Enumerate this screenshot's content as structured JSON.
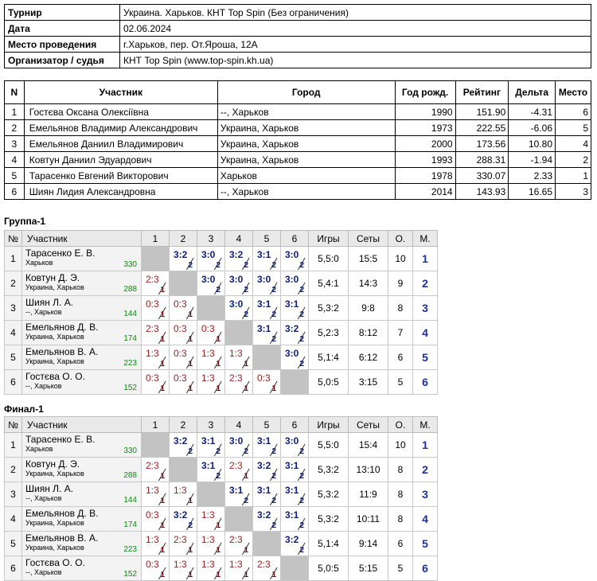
{
  "info": [
    {
      "k": "Турнир",
      "v": "Украина. Харьков. КНТ Top Spin (Без ограничения)"
    },
    {
      "k": "Дата",
      "v": "02.06.2024"
    },
    {
      "k": "Место проведения",
      "v": "г.Харьков, пер. От.Яроша, 12А"
    },
    {
      "k": "Организатор / судья",
      "v": "КНТ Top Spin (www.top-spin.kh.ua)"
    }
  ],
  "plist": {
    "headers": [
      "N",
      "Участник",
      "Город",
      "Год рожд.",
      "Рейтинг",
      "Дельта",
      "Место"
    ],
    "rows": [
      [
        "1",
        "Гостєва Оксана Олексіївна",
        "--, Харьков",
        "1990",
        "151.90",
        "-4.31",
        "6"
      ],
      [
        "2",
        "Емельянов Владимир Александрович",
        "Украина, Харьков",
        "1973",
        "222.55",
        "-6.06",
        "5"
      ],
      [
        "3",
        "Емельянов Даниил Владимирович",
        "Украина, Харьков",
        "2000",
        "173.56",
        "10.80",
        "4"
      ],
      [
        "4",
        "Ковтун Даниил Эдуардович",
        "Украина, Харьков",
        "1993",
        "288.31",
        "-1.94",
        "2"
      ],
      [
        "5",
        "Тарасенко Евгений Викторович",
        "Харьков",
        "1978",
        "330.07",
        "2.33",
        "1"
      ],
      [
        "6",
        "Шиян Лидия Александровна",
        "--, Харьков",
        "2014",
        "143.93",
        "16.65",
        "3"
      ]
    ]
  },
  "grid_headers": [
    "№",
    "Участник",
    "1",
    "2",
    "3",
    "4",
    "5",
    "6",
    "Игры",
    "Сеты",
    "О.",
    "М."
  ],
  "groups": [
    {
      "title": "Группа-1",
      "rows": [
        {
          "n": "1",
          "name": "Тарасенко Е. В.",
          "city": "Харьков",
          "rating": "330",
          "cells": [
            null,
            [
              "3:2",
              "2"
            ],
            [
              "3:0",
              "2"
            ],
            [
              "3:2",
              "2"
            ],
            [
              "3:1",
              "2"
            ],
            [
              "3:0",
              "2"
            ]
          ],
          "games": "5,5:0",
          "sets": "15:5",
          "pts": "10",
          "place": "1"
        },
        {
          "n": "2",
          "name": "Ковтун Д. Э.",
          "city": "Украина, Харьков",
          "rating": "288",
          "cells": [
            [
              "2:3",
              "1"
            ],
            null,
            [
              "3:0",
              "2"
            ],
            [
              "3:0",
              "2"
            ],
            [
              "3:0",
              "2"
            ],
            [
              "3:0",
              "2"
            ]
          ],
          "games": "5,4:1",
          "sets": "14:3",
          "pts": "9",
          "place": "2"
        },
        {
          "n": "3",
          "name": "Шиян Л. А.",
          "city": "--, Харьков",
          "rating": "144",
          "cells": [
            [
              "0:3",
              "1"
            ],
            [
              "0:3",
              "1"
            ],
            null,
            [
              "3:0",
              "2"
            ],
            [
              "3:1",
              "2"
            ],
            [
              "3:1",
              "2"
            ]
          ],
          "games": "5,3:2",
          "sets": "9:8",
          "pts": "8",
          "place": "3"
        },
        {
          "n": "4",
          "name": "Емельянов Д. В.",
          "city": "Украина, Харьков",
          "rating": "174",
          "cells": [
            [
              "2:3",
              "1"
            ],
            [
              "0:3",
              "1"
            ],
            [
              "0:3",
              "1"
            ],
            null,
            [
              "3:1",
              "2"
            ],
            [
              "3:2",
              "2"
            ]
          ],
          "games": "5,2:3",
          "sets": "8:12",
          "pts": "7",
          "place": "4"
        },
        {
          "n": "5",
          "name": "Емельянов В. А.",
          "city": "Украина, Харьков",
          "rating": "223",
          "cells": [
            [
              "1:3",
              "1"
            ],
            [
              "0:3",
              "1"
            ],
            [
              "1:3",
              "1"
            ],
            [
              "1:3",
              "1"
            ],
            null,
            [
              "3:0",
              "2"
            ]
          ],
          "games": "5,1:4",
          "sets": "6:12",
          "pts": "6",
          "place": "5"
        },
        {
          "n": "6",
          "name": "Гостєва О. О.",
          "city": "--, Харьков",
          "rating": "152",
          "cells": [
            [
              "0:3",
              "1"
            ],
            [
              "0:3",
              "1"
            ],
            [
              "1:3",
              "1"
            ],
            [
              "2:3",
              "1"
            ],
            [
              "0:3",
              "1"
            ],
            null
          ],
          "games": "5,0:5",
          "sets": "3:15",
          "pts": "5",
          "place": "6"
        }
      ]
    },
    {
      "title": "Финал-1",
      "rows": [
        {
          "n": "1",
          "name": "Тарасенко Е. В.",
          "city": "Харьков",
          "rating": "330",
          "cells": [
            null,
            [
              "3:2",
              "2"
            ],
            [
              "3:1",
              "2"
            ],
            [
              "3:0",
              "2"
            ],
            [
              "3:1",
              "2"
            ],
            [
              "3:0",
              "2"
            ]
          ],
          "games": "5,5:0",
          "sets": "15:4",
          "pts": "10",
          "place": "1"
        },
        {
          "n": "2",
          "name": "Ковтун Д. Э.",
          "city": "Украина, Харьков",
          "rating": "288",
          "cells": [
            [
              "2:3",
              "1"
            ],
            null,
            [
              "3:1",
              "2"
            ],
            [
              "2:3",
              "1"
            ],
            [
              "3:2",
              "2"
            ],
            [
              "3:1",
              "2"
            ]
          ],
          "games": "5,3:2",
          "sets": "13:10",
          "pts": "8",
          "place": "2"
        },
        {
          "n": "3",
          "name": "Шиян Л. А.",
          "city": "--, Харьков",
          "rating": "144",
          "cells": [
            [
              "1:3",
              "1"
            ],
            [
              "1:3",
              "1"
            ],
            null,
            [
              "3:1",
              "2"
            ],
            [
              "3:1",
              "2"
            ],
            [
              "3:1",
              "2"
            ]
          ],
          "games": "5,3:2",
          "sets": "11:9",
          "pts": "8",
          "place": "3"
        },
        {
          "n": "4",
          "name": "Емельянов Д. В.",
          "city": "Украина, Харьков",
          "rating": "174",
          "cells": [
            [
              "0:3",
              "1"
            ],
            [
              "3:2",
              "2"
            ],
            [
              "1:3",
              "1"
            ],
            null,
            [
              "3:2",
              "2"
            ],
            [
              "3:1",
              "2"
            ]
          ],
          "games": "5,3:2",
          "sets": "10:11",
          "pts": "8",
          "place": "4"
        },
        {
          "n": "5",
          "name": "Емельянов В. А.",
          "city": "Украина, Харьков",
          "rating": "223",
          "cells": [
            [
              "1:3",
              "1"
            ],
            [
              "2:3",
              "1"
            ],
            [
              "1:3",
              "1"
            ],
            [
              "2:3",
              "1"
            ],
            null,
            [
              "3:2",
              "2"
            ]
          ],
          "games": "5,1:4",
          "sets": "9:14",
          "pts": "6",
          "place": "5"
        },
        {
          "n": "6",
          "name": "Гостєва О. О.",
          "city": "--, Харьков",
          "rating": "152",
          "cells": [
            [
              "0:3",
              "1"
            ],
            [
              "1:3",
              "1"
            ],
            [
              "1:3",
              "1"
            ],
            [
              "1:3",
              "1"
            ],
            [
              "2:3",
              "1"
            ],
            null
          ],
          "games": "5,0:5",
          "sets": "5:15",
          "pts": "5",
          "place": "6"
        }
      ]
    }
  ]
}
